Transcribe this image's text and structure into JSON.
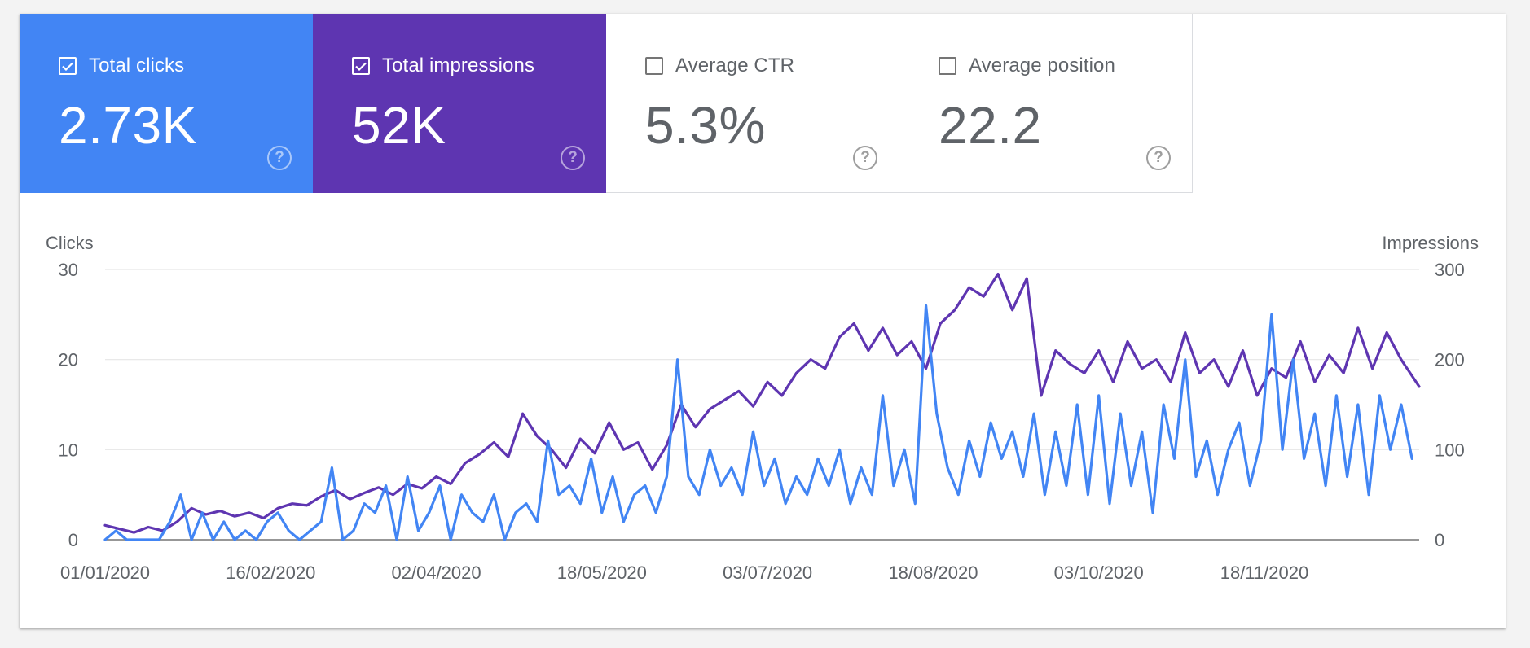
{
  "metrics": [
    {
      "label": "Total clicks",
      "value": "2.73K",
      "checked": true,
      "color": "#4285f4"
    },
    {
      "label": "Total impressions",
      "value": "52K",
      "checked": true,
      "color": "#5e35b1"
    },
    {
      "label": "Average CTR",
      "value": "5.3%",
      "checked": false,
      "color": "#ffffff"
    },
    {
      "label": "Average position",
      "value": "22.2",
      "checked": false,
      "color": "#ffffff"
    }
  ],
  "help_icon": "?",
  "chart_data": {
    "type": "line",
    "left_axis_label": "Clicks",
    "right_axis_label": "Impressions",
    "left_ylim": [
      0,
      30
    ],
    "right_ylim": [
      0,
      300
    ],
    "left_ticks": [
      "0",
      "10",
      "20",
      "30"
    ],
    "right_ticks": [
      "0",
      "100",
      "200",
      "300"
    ],
    "x_start": "2020-01-01",
    "x_end": "2020-12-31",
    "x_tick_dates": [
      "2020-01-01",
      "2020-02-16",
      "2020-04-02",
      "2020-05-18",
      "2020-07-03",
      "2020-08-18",
      "2020-10-03",
      "2020-11-18"
    ],
    "x_tick_labels": [
      "01/01/2020",
      "16/02/2020",
      "02/04/2020",
      "18/05/2020",
      "03/07/2020",
      "18/08/2020",
      "03/10/2020",
      "18/11/2020"
    ],
    "grid": true,
    "series": [
      {
        "name": "Total clicks",
        "axis": "left",
        "color": "#4285f4",
        "points": [
          [
            "2020-01-01",
            0
          ],
          [
            "2020-01-04",
            1
          ],
          [
            "2020-01-07",
            0
          ],
          [
            "2020-01-10",
            0
          ],
          [
            "2020-01-13",
            0
          ],
          [
            "2020-01-16",
            0
          ],
          [
            "2020-01-19",
            2
          ],
          [
            "2020-01-22",
            5
          ],
          [
            "2020-01-25",
            0
          ],
          [
            "2020-01-28",
            3
          ],
          [
            "2020-01-31",
            0
          ],
          [
            "2020-02-03",
            2
          ],
          [
            "2020-02-06",
            0
          ],
          [
            "2020-02-09",
            1
          ],
          [
            "2020-02-12",
            0
          ],
          [
            "2020-02-15",
            2
          ],
          [
            "2020-02-18",
            3
          ],
          [
            "2020-02-21",
            1
          ],
          [
            "2020-02-24",
            0
          ],
          [
            "2020-02-27",
            1
          ],
          [
            "2020-03-01",
            2
          ],
          [
            "2020-03-04",
            8
          ],
          [
            "2020-03-07",
            0
          ],
          [
            "2020-03-10",
            1
          ],
          [
            "2020-03-13",
            4
          ],
          [
            "2020-03-16",
            3
          ],
          [
            "2020-03-19",
            6
          ],
          [
            "2020-03-22",
            0
          ],
          [
            "2020-03-25",
            7
          ],
          [
            "2020-03-28",
            1
          ],
          [
            "2020-03-31",
            3
          ],
          [
            "2020-04-03",
            6
          ],
          [
            "2020-04-06",
            0
          ],
          [
            "2020-04-09",
            5
          ],
          [
            "2020-04-12",
            3
          ],
          [
            "2020-04-15",
            2
          ],
          [
            "2020-04-18",
            5
          ],
          [
            "2020-04-21",
            0
          ],
          [
            "2020-04-24",
            3
          ],
          [
            "2020-04-27",
            4
          ],
          [
            "2020-04-30",
            2
          ],
          [
            "2020-05-03",
            11
          ],
          [
            "2020-05-06",
            5
          ],
          [
            "2020-05-09",
            6
          ],
          [
            "2020-05-12",
            4
          ],
          [
            "2020-05-15",
            9
          ],
          [
            "2020-05-18",
            3
          ],
          [
            "2020-05-21",
            7
          ],
          [
            "2020-05-24",
            2
          ],
          [
            "2020-05-27",
            5
          ],
          [
            "2020-05-30",
            6
          ],
          [
            "2020-06-02",
            3
          ],
          [
            "2020-06-05",
            7
          ],
          [
            "2020-06-08",
            20
          ],
          [
            "2020-06-11",
            7
          ],
          [
            "2020-06-14",
            5
          ],
          [
            "2020-06-17",
            10
          ],
          [
            "2020-06-20",
            6
          ],
          [
            "2020-06-23",
            8
          ],
          [
            "2020-06-26",
            5
          ],
          [
            "2020-06-29",
            12
          ],
          [
            "2020-07-02",
            6
          ],
          [
            "2020-07-05",
            9
          ],
          [
            "2020-07-08",
            4
          ],
          [
            "2020-07-11",
            7
          ],
          [
            "2020-07-14",
            5
          ],
          [
            "2020-07-17",
            9
          ],
          [
            "2020-07-20",
            6
          ],
          [
            "2020-07-23",
            10
          ],
          [
            "2020-07-26",
            4
          ],
          [
            "2020-07-29",
            8
          ],
          [
            "2020-08-01",
            5
          ],
          [
            "2020-08-04",
            16
          ],
          [
            "2020-08-07",
            6
          ],
          [
            "2020-08-10",
            10
          ],
          [
            "2020-08-13",
            4
          ],
          [
            "2020-08-16",
            26
          ],
          [
            "2020-08-19",
            14
          ],
          [
            "2020-08-22",
            8
          ],
          [
            "2020-08-25",
            5
          ],
          [
            "2020-08-28",
            11
          ],
          [
            "2020-08-31",
            7
          ],
          [
            "2020-09-03",
            13
          ],
          [
            "2020-09-06",
            9
          ],
          [
            "2020-09-09",
            12
          ],
          [
            "2020-09-12",
            7
          ],
          [
            "2020-09-15",
            14
          ],
          [
            "2020-09-18",
            5
          ],
          [
            "2020-09-21",
            12
          ],
          [
            "2020-09-24",
            6
          ],
          [
            "2020-09-27",
            15
          ],
          [
            "2020-09-30",
            5
          ],
          [
            "2020-10-03",
            16
          ],
          [
            "2020-10-06",
            4
          ],
          [
            "2020-10-09",
            14
          ],
          [
            "2020-10-12",
            6
          ],
          [
            "2020-10-15",
            12
          ],
          [
            "2020-10-18",
            3
          ],
          [
            "2020-10-21",
            15
          ],
          [
            "2020-10-24",
            9
          ],
          [
            "2020-10-27",
            20
          ],
          [
            "2020-10-30",
            7
          ],
          [
            "2020-11-02",
            11
          ],
          [
            "2020-11-05",
            5
          ],
          [
            "2020-11-08",
            10
          ],
          [
            "2020-11-11",
            13
          ],
          [
            "2020-11-14",
            6
          ],
          [
            "2020-11-17",
            11
          ],
          [
            "2020-11-20",
            25
          ],
          [
            "2020-11-23",
            10
          ],
          [
            "2020-11-26",
            20
          ],
          [
            "2020-11-29",
            9
          ],
          [
            "2020-12-02",
            14
          ],
          [
            "2020-12-05",
            6
          ],
          [
            "2020-12-08",
            16
          ],
          [
            "2020-12-11",
            7
          ],
          [
            "2020-12-14",
            15
          ],
          [
            "2020-12-17",
            5
          ],
          [
            "2020-12-20",
            16
          ],
          [
            "2020-12-23",
            10
          ],
          [
            "2020-12-26",
            15
          ],
          [
            "2020-12-29",
            9
          ]
        ]
      },
      {
        "name": "Total impressions",
        "axis": "right",
        "color": "#5e35b1",
        "points": [
          [
            "2020-01-01",
            16
          ],
          [
            "2020-01-05",
            12
          ],
          [
            "2020-01-09",
            8
          ],
          [
            "2020-01-13",
            14
          ],
          [
            "2020-01-17",
            10
          ],
          [
            "2020-01-21",
            20
          ],
          [
            "2020-01-25",
            35
          ],
          [
            "2020-01-29",
            28
          ],
          [
            "2020-02-02",
            32
          ],
          [
            "2020-02-06",
            26
          ],
          [
            "2020-02-10",
            30
          ],
          [
            "2020-02-14",
            24
          ],
          [
            "2020-02-18",
            35
          ],
          [
            "2020-02-22",
            40
          ],
          [
            "2020-02-26",
            38
          ],
          [
            "2020-03-01",
            48
          ],
          [
            "2020-03-05",
            55
          ],
          [
            "2020-03-09",
            45
          ],
          [
            "2020-03-13",
            52
          ],
          [
            "2020-03-17",
            58
          ],
          [
            "2020-03-21",
            50
          ],
          [
            "2020-03-25",
            62
          ],
          [
            "2020-03-29",
            57
          ],
          [
            "2020-04-02",
            70
          ],
          [
            "2020-04-06",
            62
          ],
          [
            "2020-04-10",
            85
          ],
          [
            "2020-04-14",
            95
          ],
          [
            "2020-04-18",
            108
          ],
          [
            "2020-04-22",
            92
          ],
          [
            "2020-04-26",
            140
          ],
          [
            "2020-04-30",
            115
          ],
          [
            "2020-05-04",
            100
          ],
          [
            "2020-05-08",
            80
          ],
          [
            "2020-05-12",
            112
          ],
          [
            "2020-05-16",
            96
          ],
          [
            "2020-05-20",
            130
          ],
          [
            "2020-05-24",
            100
          ],
          [
            "2020-05-28",
            108
          ],
          [
            "2020-06-01",
            78
          ],
          [
            "2020-06-05",
            105
          ],
          [
            "2020-06-09",
            150
          ],
          [
            "2020-06-13",
            125
          ],
          [
            "2020-06-17",
            145
          ],
          [
            "2020-06-21",
            155
          ],
          [
            "2020-06-25",
            165
          ],
          [
            "2020-06-29",
            148
          ],
          [
            "2020-07-03",
            175
          ],
          [
            "2020-07-07",
            160
          ],
          [
            "2020-07-11",
            185
          ],
          [
            "2020-07-15",
            200
          ],
          [
            "2020-07-19",
            190
          ],
          [
            "2020-07-23",
            225
          ],
          [
            "2020-07-27",
            240
          ],
          [
            "2020-07-31",
            210
          ],
          [
            "2020-08-04",
            235
          ],
          [
            "2020-08-08",
            205
          ],
          [
            "2020-08-12",
            220
          ],
          [
            "2020-08-16",
            190
          ],
          [
            "2020-08-20",
            240
          ],
          [
            "2020-08-24",
            255
          ],
          [
            "2020-08-28",
            280
          ],
          [
            "2020-09-01",
            270
          ],
          [
            "2020-09-05",
            295
          ],
          [
            "2020-09-09",
            255
          ],
          [
            "2020-09-13",
            290
          ],
          [
            "2020-09-17",
            160
          ],
          [
            "2020-09-21",
            210
          ],
          [
            "2020-09-25",
            195
          ],
          [
            "2020-09-29",
            185
          ],
          [
            "2020-10-03",
            210
          ],
          [
            "2020-10-07",
            175
          ],
          [
            "2020-10-11",
            220
          ],
          [
            "2020-10-15",
            190
          ],
          [
            "2020-10-19",
            200
          ],
          [
            "2020-10-23",
            175
          ],
          [
            "2020-10-27",
            230
          ],
          [
            "2020-10-31",
            185
          ],
          [
            "2020-11-04",
            200
          ],
          [
            "2020-11-08",
            170
          ],
          [
            "2020-11-12",
            210
          ],
          [
            "2020-11-16",
            160
          ],
          [
            "2020-11-20",
            190
          ],
          [
            "2020-11-24",
            180
          ],
          [
            "2020-11-28",
            220
          ],
          [
            "2020-12-02",
            175
          ],
          [
            "2020-12-06",
            205
          ],
          [
            "2020-12-10",
            185
          ],
          [
            "2020-12-14",
            235
          ],
          [
            "2020-12-18",
            190
          ],
          [
            "2020-12-22",
            230
          ],
          [
            "2020-12-26",
            200
          ],
          [
            "2020-12-31",
            170
          ]
        ]
      }
    ]
  }
}
